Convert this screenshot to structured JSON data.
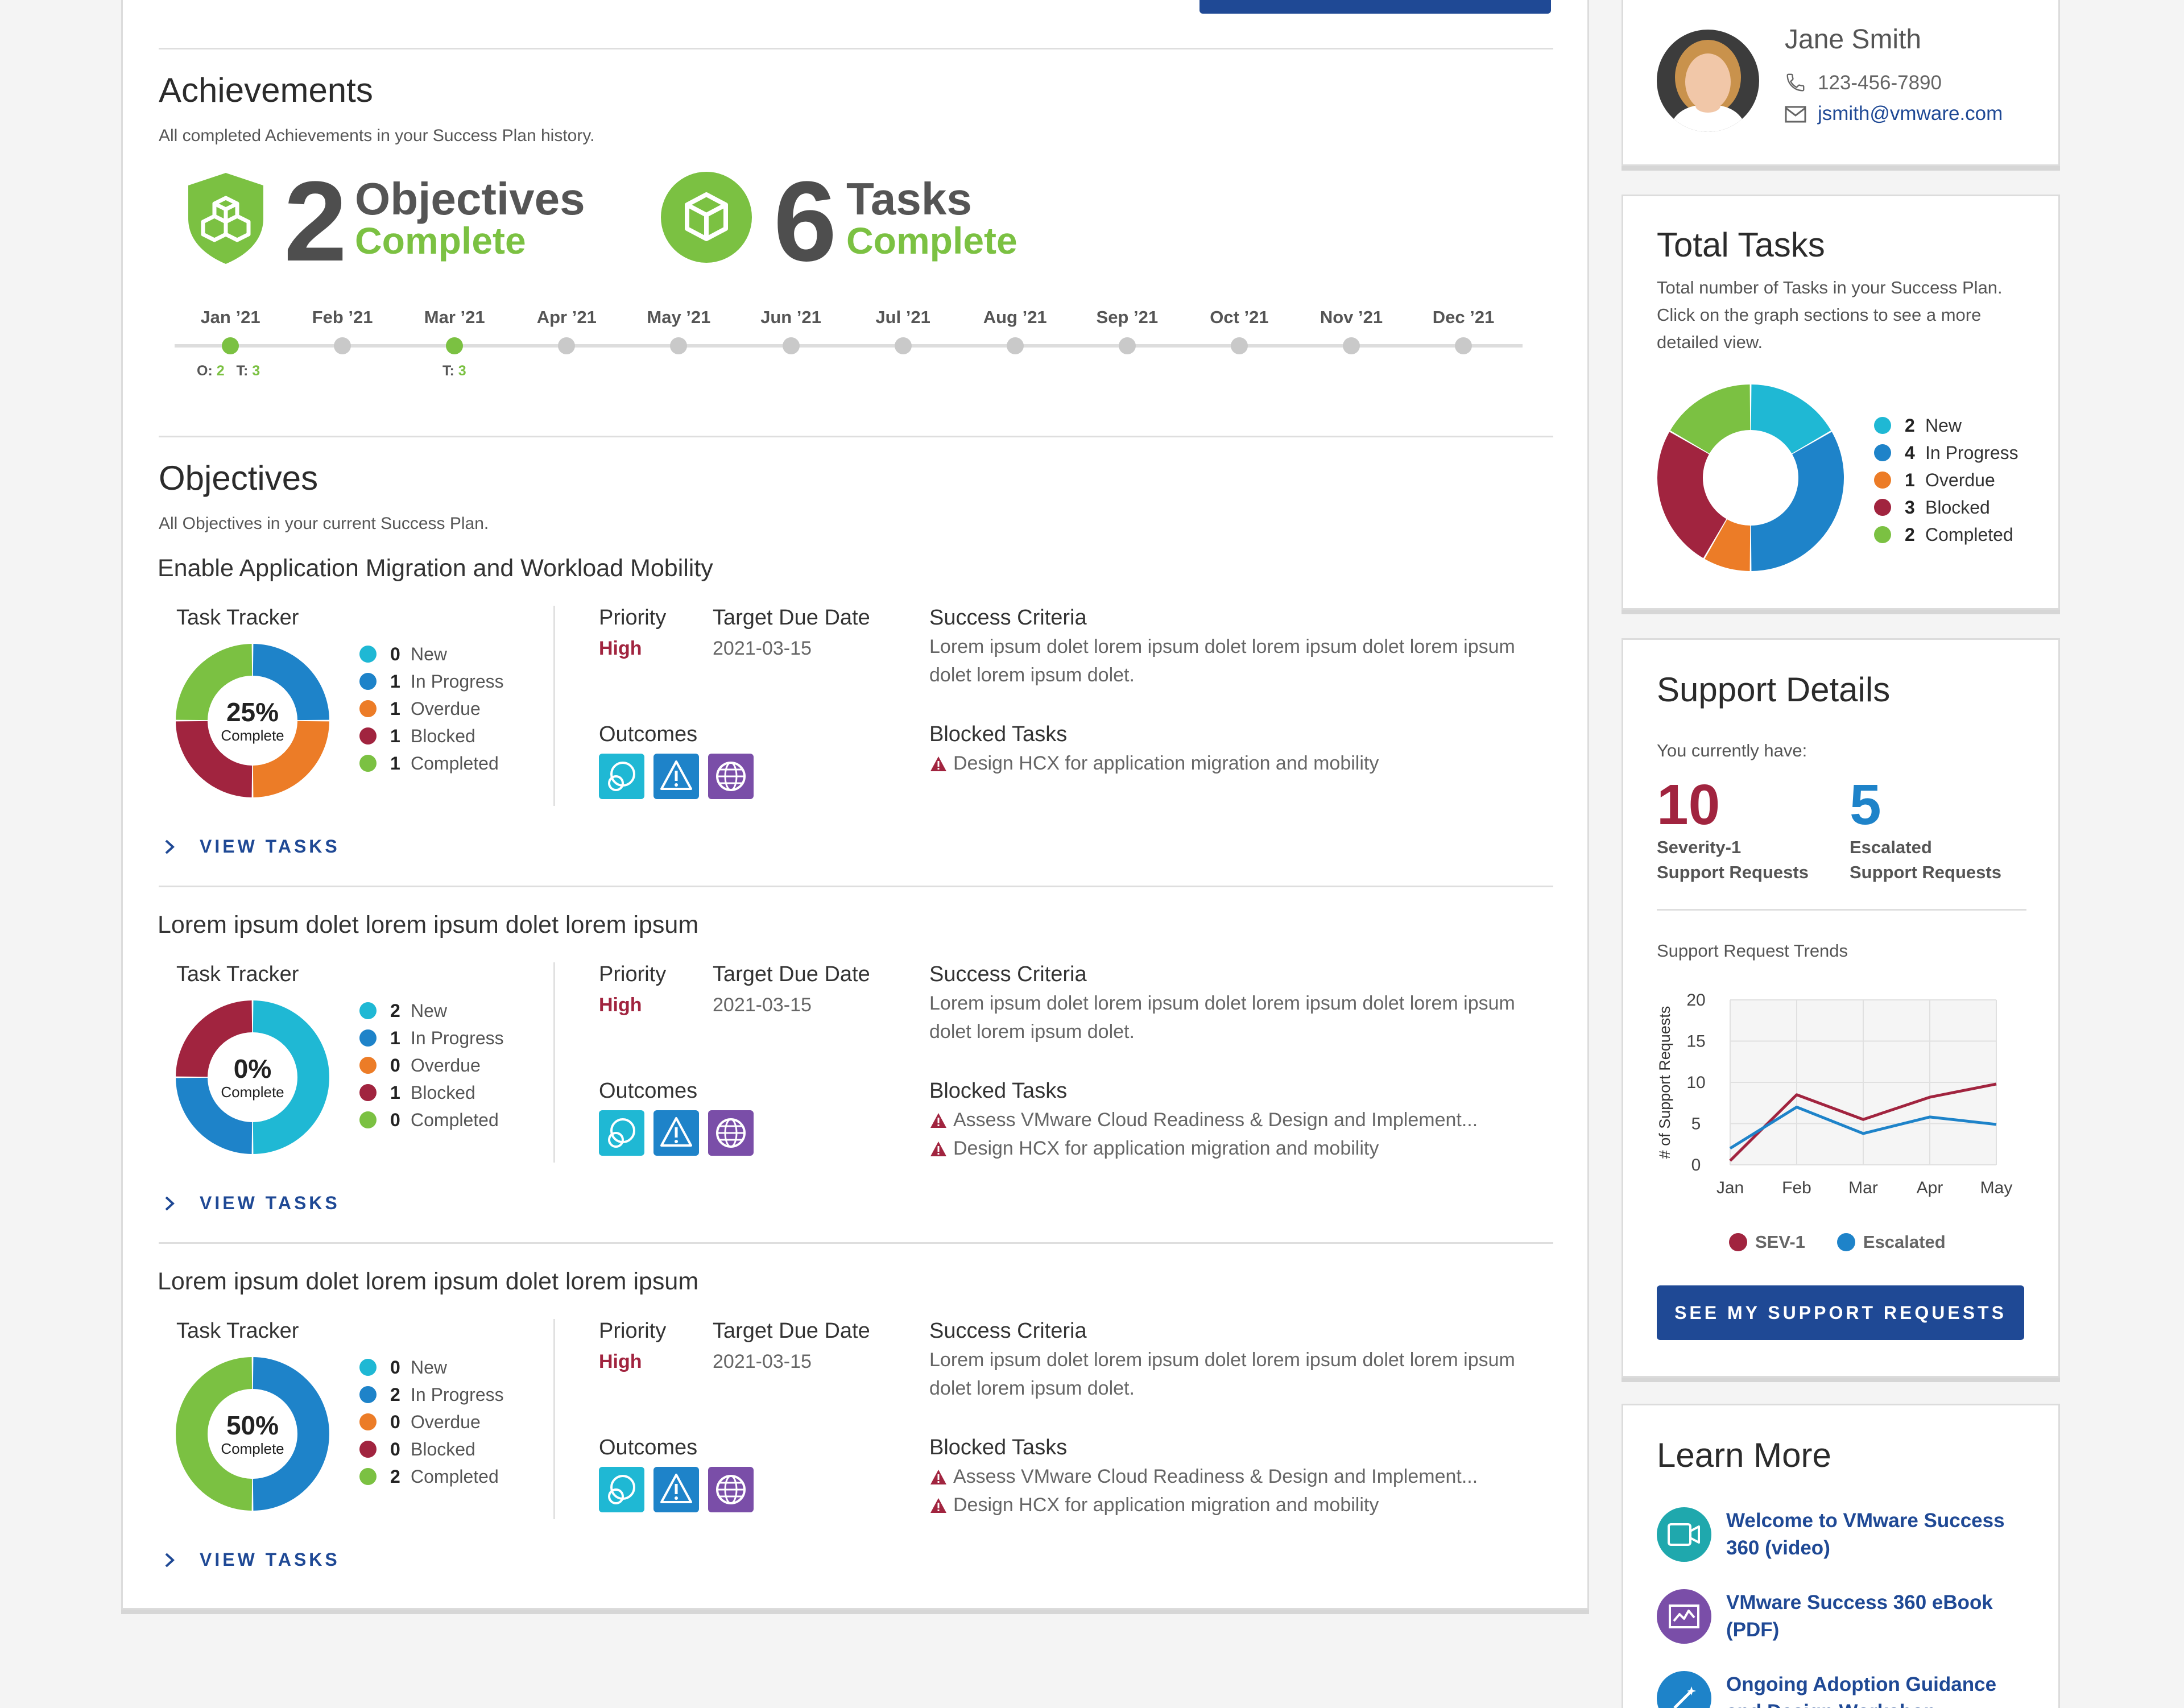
{
  "achievements": {
    "title": "Achievements",
    "subtitle": "All completed Achievements in your Success Plan history.",
    "objectives_count": "2",
    "objectives_word": "Objectives",
    "tasks_count": "6",
    "tasks_word": "Tasks",
    "complete_word": "Complete",
    "timeline": [
      "Jan ’21",
      "Feb ’21",
      "Mar ’21",
      "Apr ’21",
      "May ’21",
      "Jun ’21",
      "Jul ’21",
      "Aug ’21",
      "Sep ’21",
      "Oct ’21",
      "Nov ’21",
      "Dec ’21"
    ],
    "jan_note_o_label": "O:",
    "jan_note_o": "2",
    "jan_note_t_label": "T:",
    "jan_note_t": "3",
    "mar_note_t_label": "T:",
    "mar_note_t": "3"
  },
  "objectives": {
    "title": "Objectives",
    "subtitle": "All Objectives in your current Success Plan.",
    "labels": {
      "task_tracker": "Task Tracker",
      "priority": "Priority",
      "target_due_date": "Target Due Date",
      "success_criteria": "Success Criteria",
      "outcomes": "Outcomes",
      "blocked_tasks": "Blocked Tasks",
      "view_tasks": "VIEW TASKS",
      "complete": "Complete"
    },
    "legend_labels": [
      "New",
      "In Progress",
      "Overdue",
      "Blocked",
      "Completed"
    ],
    "items": [
      {
        "title": "Enable Application Migration and Workload Mobility",
        "percent": "25%",
        "counts": [
          "0",
          "1",
          "1",
          "1",
          "1"
        ],
        "priority": "High",
        "due": "2021-03-15",
        "criteria": "Lorem ipsum dolet lorem ipsum dolet lorem ipsum dolet lorem ipsum dolet lorem ipsum dolet.",
        "blocked": [
          "Design HCX for application migration and mobility"
        ]
      },
      {
        "title": "Lorem ipsum dolet lorem ipsum dolet lorem ipsum",
        "percent": "0%",
        "counts": [
          "2",
          "1",
          "0",
          "1",
          "0"
        ],
        "priority": "High",
        "due": "2021-03-15",
        "criteria": "Lorem ipsum dolet lorem ipsum dolet lorem ipsum dolet lorem ipsum dolet lorem ipsum dolet.",
        "blocked": [
          "Assess VMware Cloud Readiness & Design and Implement...",
          "Design HCX for application migration and mobility"
        ]
      },
      {
        "title": "Lorem ipsum dolet lorem ipsum dolet lorem ipsum",
        "percent": "50%",
        "counts": [
          "0",
          "2",
          "0",
          "0",
          "2"
        ],
        "priority": "High",
        "due": "2021-03-15",
        "criteria": "Lorem ipsum dolet lorem ipsum dolet lorem ipsum dolet lorem ipsum dolet lorem ipsum dolet.",
        "blocked": [
          "Assess VMware Cloud Readiness & Design and Implement...",
          "Design HCX for application migration and mobility"
        ]
      }
    ]
  },
  "contact": {
    "name": "Jane Smith",
    "phone": "123-456-7890",
    "email": "jsmith@vmware.com"
  },
  "total_tasks": {
    "title": "Total Tasks",
    "description": "Total number of Tasks in your Success Plan. Click on the graph sections to see a more detailed view.",
    "legend": [
      {
        "count": "2",
        "label": "New"
      },
      {
        "count": "4",
        "label": "In Progress"
      },
      {
        "count": "1",
        "label": "Overdue"
      },
      {
        "count": "3",
        "label": "Blocked"
      },
      {
        "count": "2",
        "label": "Completed"
      }
    ]
  },
  "support": {
    "title": "Support Details",
    "intro": "You currently have:",
    "sev1_count": "10",
    "sev1_label_1": "Severity-1",
    "sev1_label_2": "Support Requests",
    "esc_count": "5",
    "esc_label_1": "Escalated",
    "esc_label_2": "Support Requests",
    "trends_title": "Support Request Trends",
    "button": "SEE MY SUPPORT REQUESTS"
  },
  "learn_more": {
    "title": "Learn More",
    "items": [
      {
        "line1": "Welcome to VMware Success",
        "line2": "360 (video)"
      },
      {
        "line1": "VMware Success 360 eBook",
        "line2": "(PDF)"
      },
      {
        "line1": "Ongoing Adoption Guidance",
        "line2": "and Design Workshop"
      }
    ]
  },
  "colors": {
    "new": "#1fb8d4",
    "in_progress": "#1e83c9",
    "overdue": "#ec7c27",
    "blocked": "#a1243f",
    "completed": "#7bc142",
    "brand_blue": "#1f4995"
  },
  "chart_data": {
    "type": "line",
    "title": "Support Request Trends",
    "xlabel": "",
    "ylabel": "# of Support Requests",
    "categories": [
      "Jan",
      "Feb",
      "Mar",
      "Apr",
      "May"
    ],
    "ylim": [
      0,
      20
    ],
    "yticks": [
      "0",
      "5",
      "10",
      "15",
      "20"
    ],
    "series": [
      {
        "name": "SEV-1",
        "values": [
          0.5,
          8.5,
          5.5,
          8.2,
          9.8
        ]
      },
      {
        "name": "Escalated",
        "values": [
          2.0,
          7.0,
          3.8,
          5.8,
          4.9
        ]
      }
    ],
    "grid": true,
    "legend": "bottom"
  }
}
